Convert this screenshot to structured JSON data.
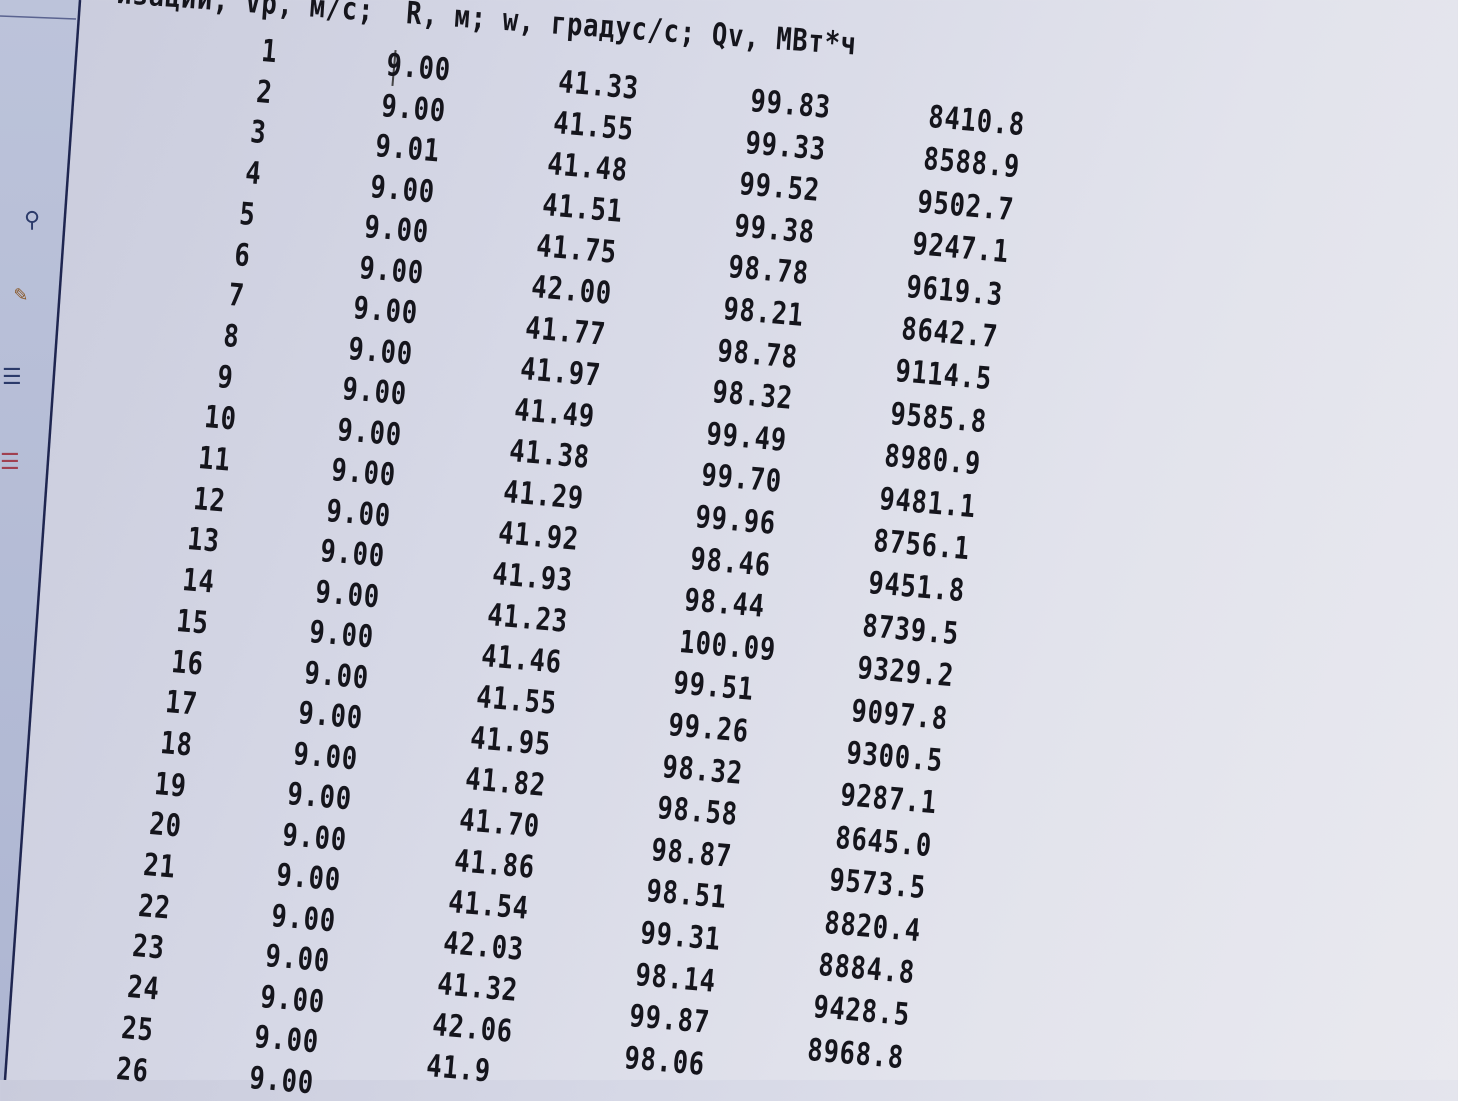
{
  "header": {
    "text": "изации; Vp, м/с;  R, м; w, градус/с; Qv, МВт*ч"
  },
  "sidebar": {
    "icons": [
      "search-icon",
      "edit-icon",
      "list-icon",
      "list-red-icon"
    ]
  },
  "table": {
    "columns": [
      "#",
      "Vp, м/с",
      "R, м",
      "w, градус/с",
      "Qv, МВт*ч"
    ],
    "rows": [
      {
        "n": "1",
        "vp": "9.00",
        "r": "41.33",
        "w": "99.83",
        "qv": "8410.8"
      },
      {
        "n": "2",
        "vp": "9.00",
        "r": "41.55",
        "w": "99.33",
        "qv": "8588.9"
      },
      {
        "n": "3",
        "vp": "9.01",
        "r": "41.48",
        "w": "99.52",
        "qv": "9502.7"
      },
      {
        "n": "4",
        "vp": "9.00",
        "r": "41.51",
        "w": "99.38",
        "qv": "9247.1"
      },
      {
        "n": "5",
        "vp": "9.00",
        "r": "41.75",
        "w": "98.78",
        "qv": "9619.3"
      },
      {
        "n": "6",
        "vp": "9.00",
        "r": "42.00",
        "w": "98.21",
        "qv": "8642.7"
      },
      {
        "n": "7",
        "vp": "9.00",
        "r": "41.77",
        "w": "98.78",
        "qv": "9114.5"
      },
      {
        "n": "8",
        "vp": "9.00",
        "r": "41.97",
        "w": "98.32",
        "qv": "9585.8"
      },
      {
        "n": "9",
        "vp": "9.00",
        "r": "41.49",
        "w": "99.49",
        "qv": "8980.9"
      },
      {
        "n": "10",
        "vp": "9.00",
        "r": "41.38",
        "w": "99.70",
        "qv": "9481.1"
      },
      {
        "n": "11",
        "vp": "9.00",
        "r": "41.29",
        "w": "99.96",
        "qv": "8756.1"
      },
      {
        "n": "12",
        "vp": "9.00",
        "r": "41.92",
        "w": "98.46",
        "qv": "9451.8"
      },
      {
        "n": "13",
        "vp": "9.00",
        "r": "41.93",
        "w": "98.44",
        "qv": "8739.5"
      },
      {
        "n": "14",
        "vp": "9.00",
        "r": "41.23",
        "w": "100.09",
        "qv": "9329.2"
      },
      {
        "n": "15",
        "vp": "9.00",
        "r": "41.46",
        "w": "99.51",
        "qv": "9097.8"
      },
      {
        "n": "16",
        "vp": "9.00",
        "r": "41.55",
        "w": "99.26",
        "qv": "9300.5"
      },
      {
        "n": "17",
        "vp": "9.00",
        "r": "41.95",
        "w": "98.32",
        "qv": "9287.1"
      },
      {
        "n": "18",
        "vp": "9.00",
        "r": "41.82",
        "w": "98.58",
        "qv": "8645.0"
      },
      {
        "n": "19",
        "vp": "9.00",
        "r": "41.70",
        "w": "98.87",
        "qv": "9573.5"
      },
      {
        "n": "20",
        "vp": "9.00",
        "r": "41.86",
        "w": "98.51",
        "qv": "8820.4"
      },
      {
        "n": "21",
        "vp": "9.00",
        "r": "41.54",
        "w": "99.31",
        "qv": "8884.8"
      },
      {
        "n": "22",
        "vp": "9.00",
        "r": "42.03",
        "w": "98.14",
        "qv": "9428.5"
      },
      {
        "n": "23",
        "vp": "9.00",
        "r": "41.32",
        "w": "99.87",
        "qv": "8968.8"
      },
      {
        "n": "24",
        "vp": "9.00",
        "r": "42.06",
        "w": "98.06",
        "qv": null
      },
      {
        "n": "25",
        "vp": "9.00",
        "r": "41.9",
        "w": null,
        "qv": null
      },
      {
        "n": "26",
        "vp": "9.00",
        "r": null,
        "w": null,
        "qv": null
      }
    ]
  }
}
